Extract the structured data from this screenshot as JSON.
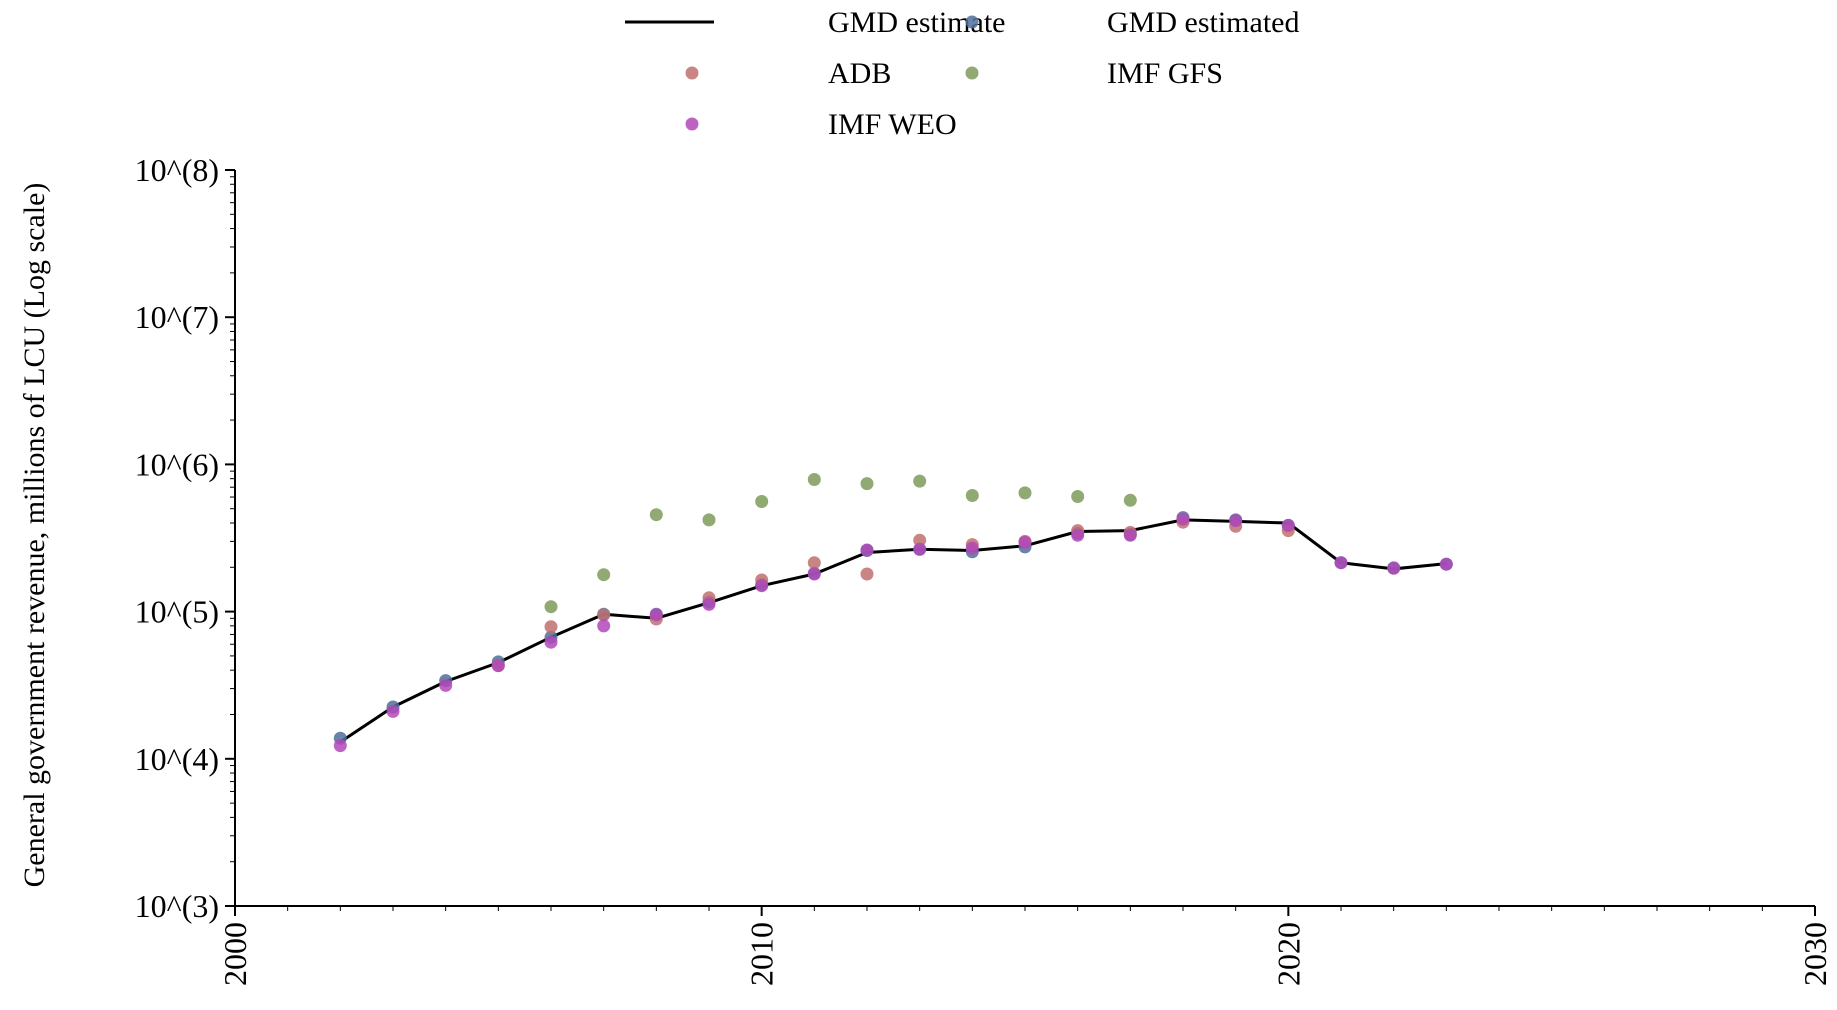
{
  "chart_data": {
    "type": "line",
    "title": "",
    "xlabel": "",
    "ylabel": "General government revenue, millions of LCU (Log scale)",
    "yscale": "log",
    "xlim": [
      2000,
      2030
    ],
    "ylim": [
      1000,
      100000000
    ],
    "x_ticks": [
      2000,
      2010,
      2020,
      2030
    ],
    "x_tick_labels": [
      "2000",
      "2010",
      "2020",
      "2030"
    ],
    "y_ticks": [
      1000,
      10000,
      100000,
      1000000,
      10000000,
      100000000
    ],
    "y_tick_labels": [
      "10^(3)",
      "10^(4)",
      "10^(5)",
      "10^(6)",
      "10^(7)",
      "10^(8)"
    ],
    "grid": false,
    "legend_position": "top",
    "legend": [
      {
        "label": "GMD estimate",
        "kind": "line",
        "color": "#000000"
      },
      {
        "label": "GMD estimated",
        "kind": "point",
        "color": "#4f6f9a"
      },
      {
        "label": "ADB",
        "kind": "point",
        "color": "#c06e6e"
      },
      {
        "label": "IMF GFS",
        "kind": "point",
        "color": "#7e9a5a"
      },
      {
        "label": "IMF WEO",
        "kind": "point",
        "color": "#b048b8"
      }
    ],
    "series": [
      {
        "name": "GMD estimate",
        "kind": "line",
        "color": "#000000",
        "x": [
          2002,
          2003,
          2004,
          2005,
          2006,
          2007,
          2008,
          2009,
          2010,
          2011,
          2012,
          2013,
          2014,
          2015,
          2016,
          2017,
          2018,
          2019,
          2020,
          2021,
          2022,
          2023
        ],
        "y": [
          13000,
          22500,
          33500,
          45000,
          67000,
          96000,
          90000,
          115000,
          150000,
          180000,
          252000,
          265000,
          260000,
          280000,
          350000,
          355000,
          420000,
          410000,
          400000,
          215000,
          195000,
          212000
        ]
      },
      {
        "name": "GMD estimated",
        "kind": "point",
        "color": "#4f6f9a",
        "x": [
          2002,
          2003,
          2004,
          2005,
          2006,
          2007,
          2008,
          2009,
          2010,
          2011,
          2012,
          2013,
          2014,
          2015,
          2016,
          2017,
          2018,
          2019,
          2020,
          2021,
          2022,
          2023
        ],
        "y": [
          13800,
          22500,
          34000,
          45500,
          67000,
          96000,
          96000,
          116000,
          152000,
          182000,
          260000,
          265000,
          255000,
          275000,
          340000,
          335000,
          435000,
          420000,
          385000,
          215000,
          198000,
          210000
        ]
      },
      {
        "name": "ADB",
        "kind": "point",
        "color": "#c06e6e",
        "x": [
          2005,
          2006,
          2007,
          2008,
          2009,
          2010,
          2011,
          2012,
          2013,
          2014,
          2015,
          2016,
          2017,
          2018,
          2019,
          2020
        ],
        "y": [
          43000,
          79000,
          95000,
          89000,
          124000,
          164000,
          215000,
          180000,
          305000,
          285000,
          300000,
          355000,
          345000,
          405000,
          380000,
          355000
        ]
      },
      {
        "name": "IMF GFS",
        "kind": "point",
        "color": "#7e9a5a",
        "x": [
          2006,
          2007,
          2008,
          2009,
          2010,
          2011,
          2012,
          2013,
          2014,
          2015,
          2016,
          2017
        ],
        "y": [
          108000,
          178000,
          455000,
          420000,
          560000,
          790000,
          740000,
          770000,
          615000,
          640000,
          605000,
          570000
        ]
      },
      {
        "name": "IMF WEO",
        "kind": "point",
        "color": "#b048b8",
        "x": [
          2002,
          2003,
          2004,
          2005,
          2006,
          2007,
          2008,
          2009,
          2010,
          2011,
          2012,
          2013,
          2014,
          2015,
          2016,
          2017,
          2018,
          2019,
          2020,
          2021,
          2022,
          2023
        ],
        "y": [
          12300,
          21000,
          31500,
          43000,
          62000,
          80000,
          95000,
          112000,
          150000,
          180000,
          262000,
          265000,
          270000,
          295000,
          330000,
          330000,
          425000,
          415000,
          385000,
          215000,
          197000,
          210000
        ]
      }
    ]
  }
}
